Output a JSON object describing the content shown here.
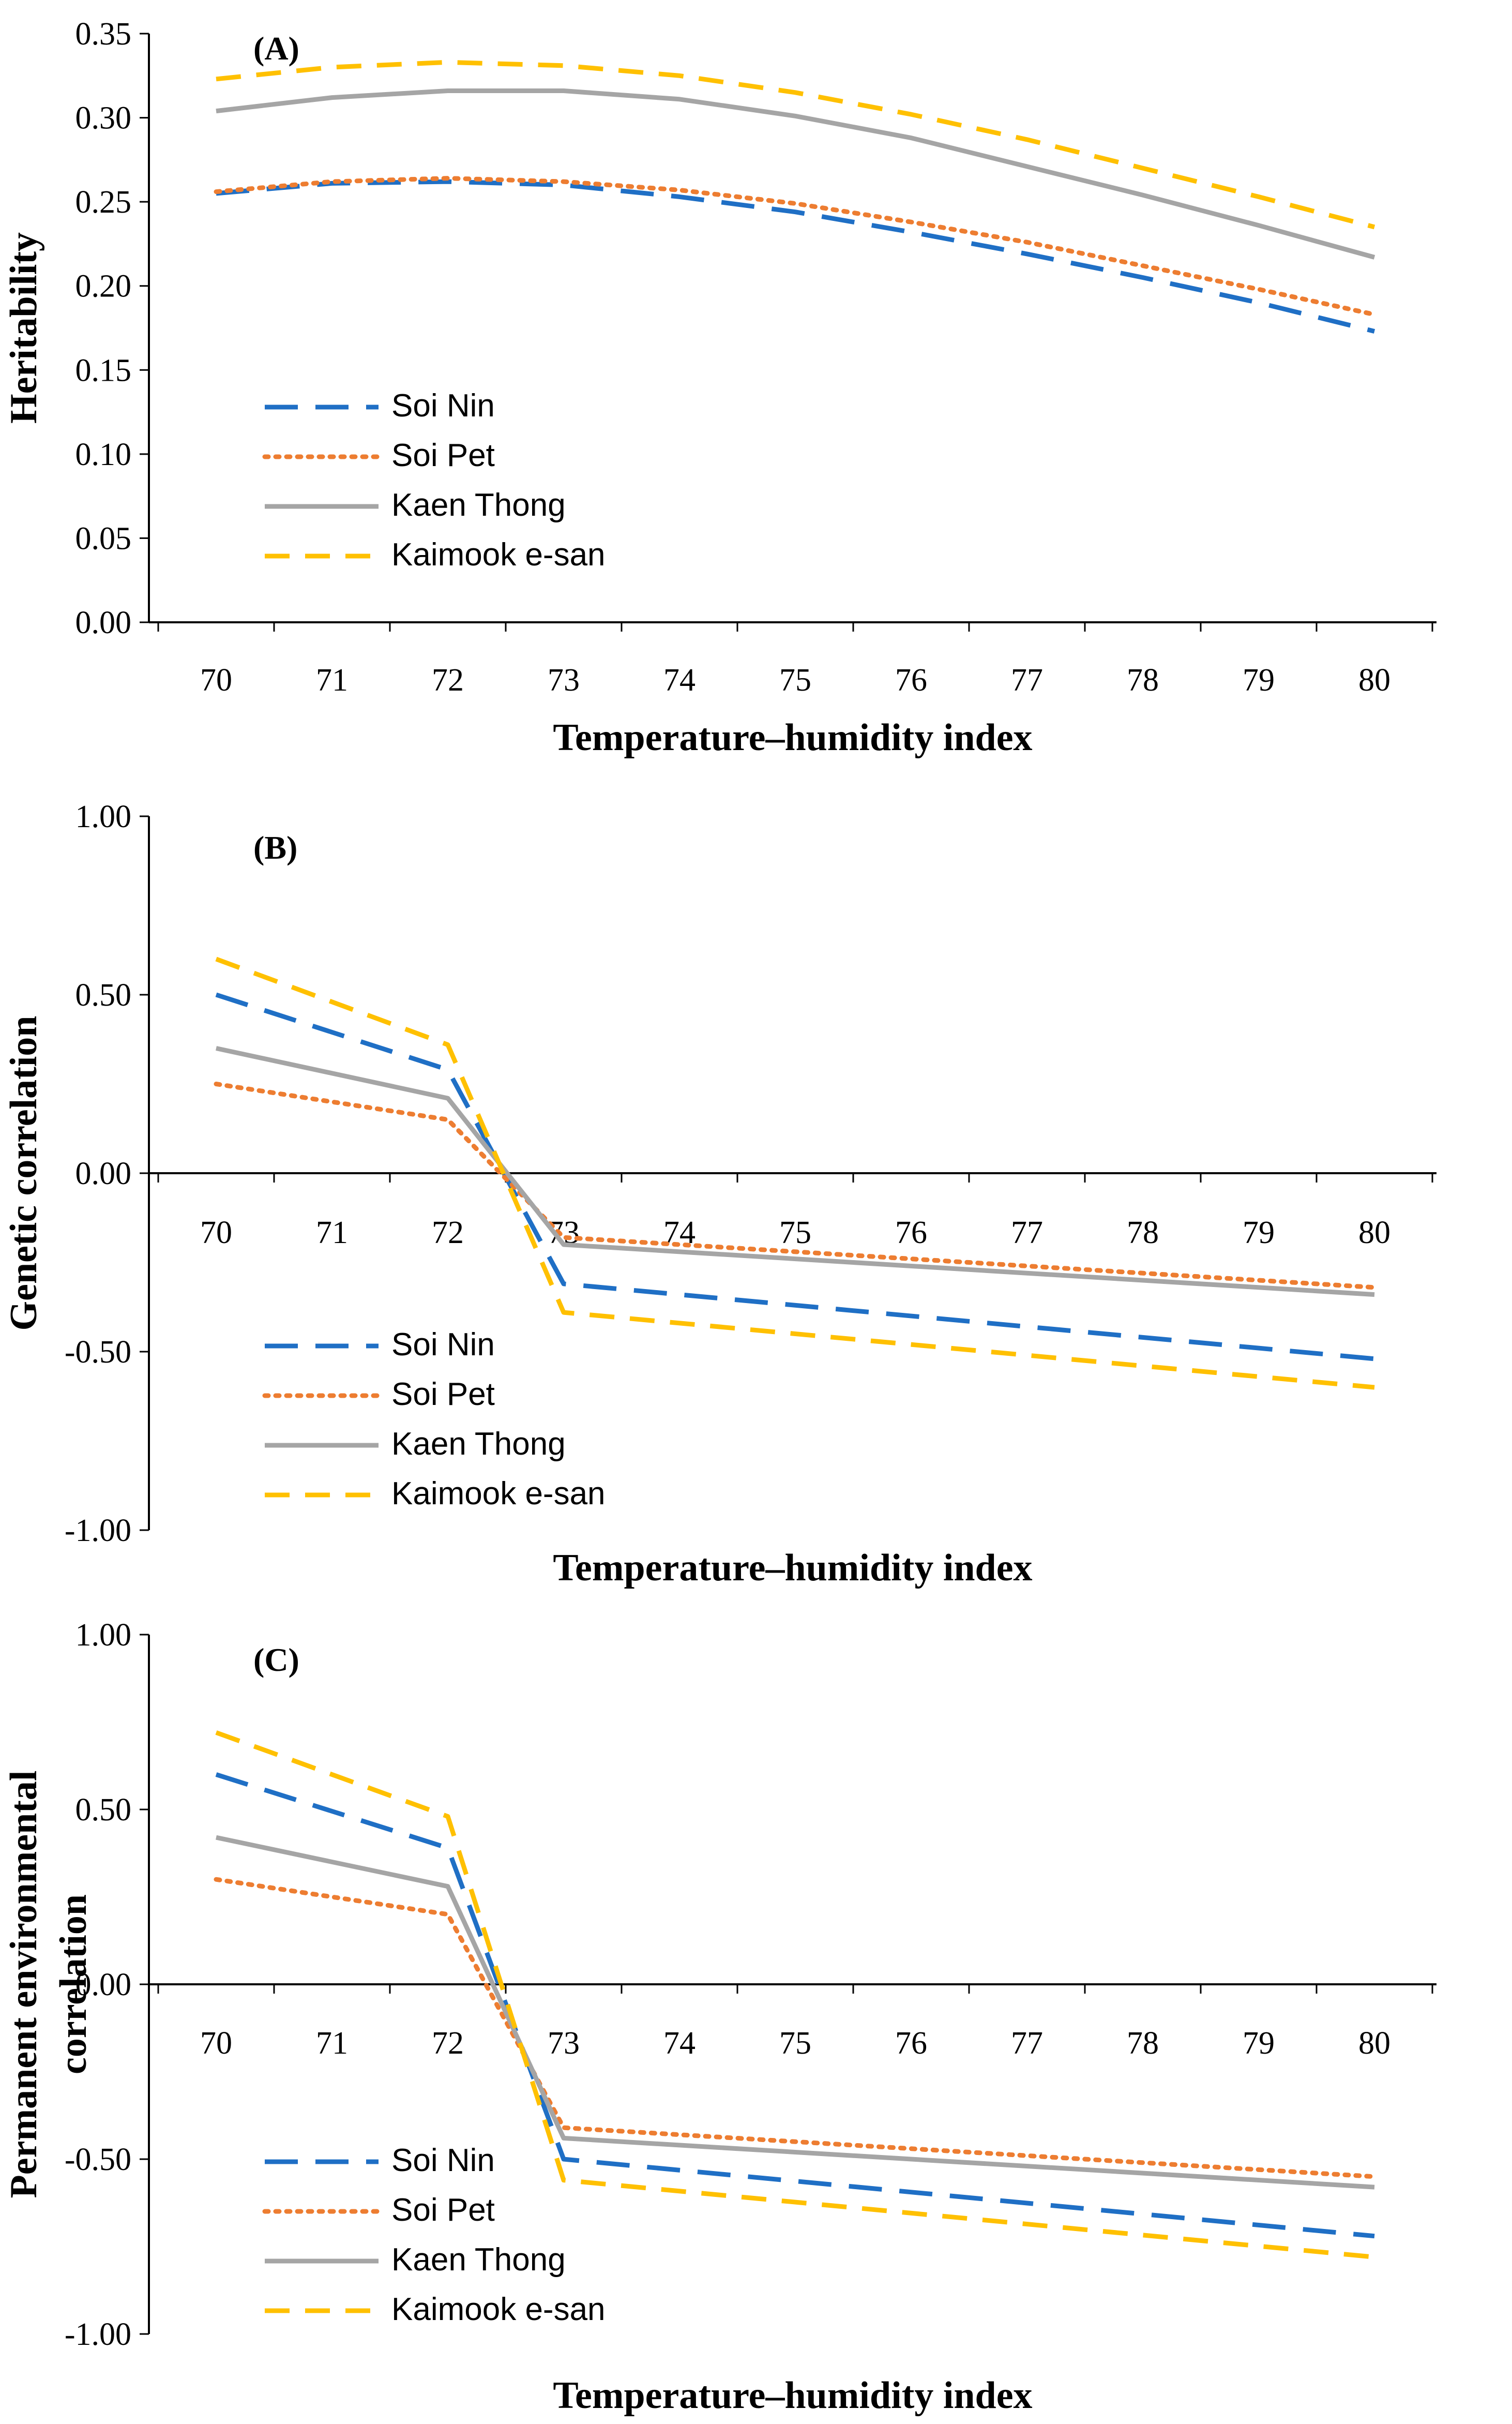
{
  "colors": {
    "soi_nin": "#1F6FC5",
    "soi_pet": "#ED7D31",
    "kaen_thong": "#A5A5A5",
    "kaimook_esan": "#FFC000"
  },
  "chart_data": [
    {
      "type": "line",
      "panel_label": "(A)",
      "title": "",
      "xlabel": "Temperature–humidity index",
      "ylabel": "Heritability",
      "x": [
        70,
        71,
        72,
        73,
        74,
        75,
        76,
        77,
        78,
        79,
        80
      ],
      "x_tick_labels": [
        "70",
        "71",
        "72",
        "73",
        "74",
        "75",
        "76",
        "77",
        "78",
        "79",
        "80"
      ],
      "ylim": [
        0,
        0.35
      ],
      "y_ticks": [
        0,
        0.05,
        0.1,
        0.15,
        0.2,
        0.25,
        0.3,
        0.35
      ],
      "y_tick_labels": [
        "0.00",
        "0.05",
        "0.10",
        "0.15",
        "0.20",
        "0.25",
        "0.30",
        "0.35"
      ],
      "legend_position": "bottom-left",
      "series": [
        {
          "name": "Soi Nin",
          "style": "long-dash",
          "color": "#1F6FC5",
          "values": [
            0.255,
            0.261,
            0.262,
            0.26,
            0.253,
            0.244,
            0.232,
            0.219,
            0.205,
            0.19,
            0.173
          ]
        },
        {
          "name": "Soi Pet",
          "style": "dotted",
          "color": "#ED7D31",
          "values": [
            0.256,
            0.262,
            0.264,
            0.262,
            0.257,
            0.249,
            0.238,
            0.226,
            0.212,
            0.198,
            0.183
          ]
        },
        {
          "name": "Kaen Thong",
          "style": "solid",
          "color": "#A5A5A5",
          "values": [
            0.304,
            0.312,
            0.316,
            0.316,
            0.311,
            0.301,
            0.288,
            0.271,
            0.254,
            0.236,
            0.217
          ]
        },
        {
          "name": "Kaimook e-san",
          "style": "dashed",
          "color": "#FFC000",
          "values": [
            0.323,
            0.33,
            0.333,
            0.331,
            0.325,
            0.315,
            0.302,
            0.287,
            0.27,
            0.253,
            0.235
          ]
        }
      ]
    },
    {
      "type": "line",
      "panel_label": "(B)",
      "title": "",
      "xlabel": "Temperature–humidity index",
      "ylabel": "Genetic correlation",
      "x": [
        70,
        72,
        73,
        80
      ],
      "x_tick_labels": [
        "70",
        "71",
        "72",
        "73",
        "74",
        "75",
        "76",
        "77",
        "78",
        "79",
        "80"
      ],
      "ylim": [
        -1,
        1
      ],
      "y_ticks": [
        -1,
        -0.5,
        0,
        0.5,
        1
      ],
      "y_tick_labels": [
        "-1.00",
        "-0.50",
        "0.00",
        "0.50",
        "1.00"
      ],
      "legend_position": "bottom-left",
      "series": [
        {
          "name": "Soi Nin",
          "style": "long-dash",
          "color": "#1F6FC5",
          "values": [
            0.5,
            0.29,
            -0.31,
            -0.52
          ]
        },
        {
          "name": "Soi Pet",
          "style": "dotted",
          "color": "#ED7D31",
          "values": [
            0.25,
            0.15,
            -0.18,
            -0.32
          ]
        },
        {
          "name": "Kaen Thong",
          "style": "solid",
          "color": "#A5A5A5",
          "values": [
            0.35,
            0.21,
            -0.2,
            -0.34
          ]
        },
        {
          "name": "Kaimook e-san",
          "style": "dashed",
          "color": "#FFC000",
          "values": [
            0.6,
            0.36,
            -0.39,
            -0.6
          ]
        }
      ]
    },
    {
      "type": "line",
      "panel_label": "(C)",
      "title": "",
      "xlabel": "Temperature–humidity index",
      "ylabel": "Permanent environmental correlation",
      "ylabel_lines": [
        "Permanent environmental",
        "correlation"
      ],
      "x": [
        70,
        72,
        73,
        80
      ],
      "x_tick_labels": [
        "70",
        "71",
        "72",
        "73",
        "74",
        "75",
        "76",
        "77",
        "78",
        "79",
        "80"
      ],
      "ylim": [
        -1,
        1
      ],
      "y_ticks": [
        -1,
        -0.5,
        0,
        0.5,
        1
      ],
      "y_tick_labels": [
        "-1.00",
        "-0.50",
        "0.00",
        "0.50",
        "1.00"
      ],
      "legend_position": "bottom-left",
      "series": [
        {
          "name": "Soi Nin",
          "style": "long-dash",
          "color": "#1F6FC5",
          "values": [
            0.6,
            0.39,
            -0.5,
            -0.72
          ]
        },
        {
          "name": "Soi Pet",
          "style": "dotted",
          "color": "#ED7D31",
          "values": [
            0.3,
            0.2,
            -0.41,
            -0.55
          ]
        },
        {
          "name": "Kaen Thong",
          "style": "solid",
          "color": "#A5A5A5",
          "values": [
            0.42,
            0.28,
            -0.44,
            -0.58
          ]
        },
        {
          "name": "Kaimook e-san",
          "style": "dashed",
          "color": "#FFC000",
          "values": [
            0.72,
            0.48,
            -0.56,
            -0.78
          ]
        }
      ]
    }
  ]
}
